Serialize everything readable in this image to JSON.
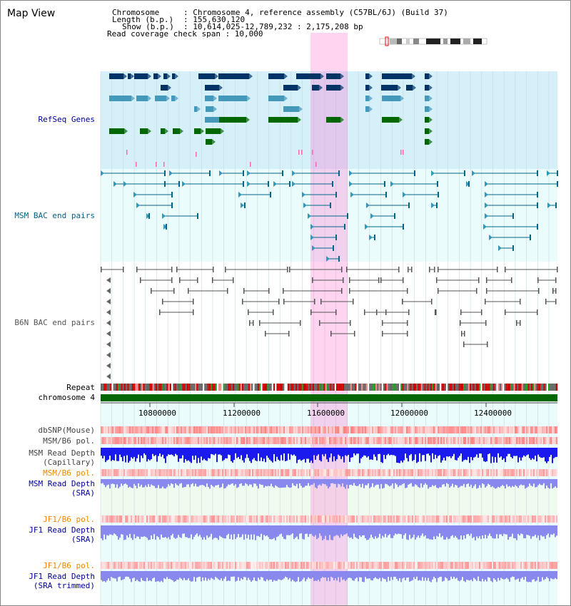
{
  "page": {
    "title": "Map View"
  },
  "header": {
    "chromosome_label": "Chromosome",
    "chromosome_value": ": Chromosome 4, reference assembly (C57BL/6J) (Build 37)",
    "length_label": "Length (b.p.)",
    "length_value": ": 155,630,120",
    "show_label": "Show (b.p.)",
    "show_value": ": 10,614,025-12,789,232 : 2,175,208 bp",
    "read_coverage": "Read coverage check span : 10,000"
  },
  "tracks": {
    "refseq": "RefSeq Genes",
    "msm_bac": "MSM BAC end pairs",
    "b6n_bac": "B6N BAC end pairs",
    "repeat": "Repeat",
    "chromosome": "chromosome 4",
    "dbsnp": "dbSNP(Mouse)",
    "msm_b6_pol": "MSM/B6 pol.",
    "msm_read_depth_cap_1": "MSM Read Depth",
    "msm_read_depth_cap_2": "(Capillary)",
    "msm_b6_pol_sra": "MSM/B6 pol.",
    "msm_read_depth_sra_1": "MSM Read Depth",
    "msm_read_depth_sra_2": "(SRA)",
    "jf1_b6_pol": "JF1/B6 pol.",
    "jf1_read_depth_1": "JF1 Read Depth",
    "jf1_read_depth_2": "(SRA)",
    "jf1_b6_pol_trim": "JF1/B6 pol.",
    "jf1_read_depth_trim_1": "JF1 Read Depth",
    "jf1_read_depth_trim_2": "(SRA trimmed)"
  },
  "axis": {
    "ticks": [
      "10800000",
      "11200000",
      "11600000",
      "12000000",
      "12400000"
    ]
  },
  "colors": {
    "highlight": "#ff66cc",
    "refseq_bg": "#d6f0fa",
    "msm_bg": "#eafcfc",
    "refseq_dark": "#003366",
    "refseq_light": "#4499bb",
    "refseq_green": "#006600",
    "msm_pair": "#006688",
    "b6n_pair": "#555555",
    "chromosome_bar": "#006600",
    "depth_blue": "#1a1aee",
    "depth_light": "#8888ee",
    "label_navy": "#000099",
    "label_orange": "#ee8800",
    "label_teal": "#006688"
  }
}
